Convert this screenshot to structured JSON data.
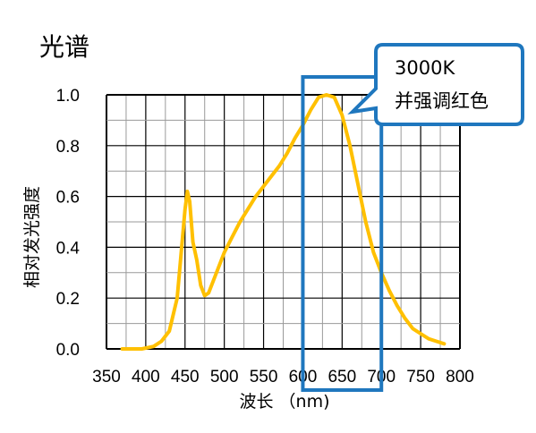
{
  "chart_data": {
    "type": "line",
    "title": "光谱",
    "xlabel": "波长 （nm)",
    "ylabel": "相对发光强度",
    "xlim": [
      350,
      800
    ],
    "ylim": [
      0.0,
      1.0
    ],
    "x_ticks": [
      "350",
      "400",
      "450",
      "500",
      "550",
      "600",
      "650",
      "700",
      "750",
      "800"
    ],
    "y_ticks": [
      "0.0",
      "0.2",
      "0.4",
      "0.6",
      "0.8",
      "1.0"
    ],
    "grid": true,
    "series": [
      {
        "color": "#FFC000",
        "x": [
          370,
          395,
          410,
          420,
          430,
          440,
          450,
          453,
          456,
          460,
          465,
          470,
          475,
          480,
          485,
          490,
          500,
          510,
          520,
          530,
          540,
          550,
          560,
          570,
          580,
          590,
          600,
          610,
          620,
          630,
          640,
          650,
          660,
          670,
          680,
          690,
          700,
          710,
          720,
          730,
          740,
          750,
          760,
          770,
          780
        ],
        "y": [
          0.0,
          0.0,
          0.01,
          0.03,
          0.07,
          0.2,
          0.55,
          0.62,
          0.58,
          0.42,
          0.35,
          0.25,
          0.21,
          0.22,
          0.26,
          0.3,
          0.38,
          0.44,
          0.5,
          0.55,
          0.6,
          0.64,
          0.68,
          0.72,
          0.77,
          0.83,
          0.88,
          0.94,
          0.99,
          1.0,
          0.99,
          0.92,
          0.8,
          0.65,
          0.5,
          0.38,
          0.3,
          0.23,
          0.17,
          0.12,
          0.08,
          0.06,
          0.04,
          0.03,
          0.02
        ]
      }
    ],
    "highlight": {
      "x_range": [
        600,
        700
      ],
      "color": "#1F77BE"
    },
    "annotation": {
      "line1": "3000K",
      "line2": "并强调红色",
      "border_color": "#1F77BE"
    }
  }
}
